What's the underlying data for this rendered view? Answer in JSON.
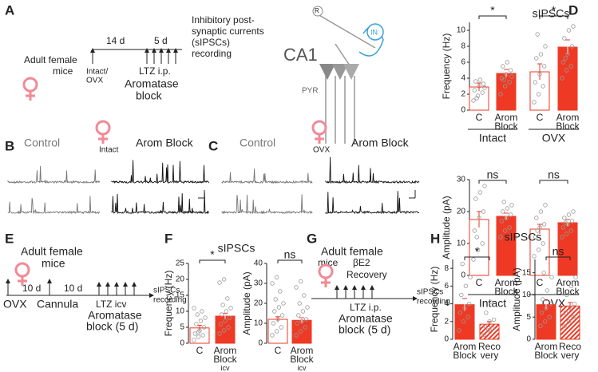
{
  "panels": {
    "A": {
      "label": "A",
      "subject": [
        "Adult female",
        "mice"
      ],
      "intervals": [
        "14 d",
        "5 d"
      ],
      "start": [
        "Intact/",
        "OVX"
      ],
      "injection": "LTZ i.p.",
      "treatment": [
        "Aromatase",
        "block"
      ],
      "recording": [
        "Inhibitory post-",
        "synaptic currents",
        "(sIPSCs)",
        "recording"
      ],
      "region": "CA1",
      "cells": [
        "R",
        "IN",
        "PYR"
      ]
    },
    "B": {
      "label": "B",
      "condition": "Intact",
      "traces": [
        "Control",
        "Arom Block"
      ]
    },
    "C": {
      "label": "C",
      "condition": "OVX",
      "traces": [
        "Control",
        "Arom Block"
      ]
    },
    "D": {
      "label": "D"
    },
    "E": {
      "label": "E",
      "subject": [
        "Adult female",
        "mice"
      ],
      "intervals": [
        "10 d",
        "10 d"
      ],
      "events": [
        "OVX",
        "Cannula",
        "LTZ icv"
      ],
      "treatment": [
        "Aromatase",
        "block (5 d)"
      ],
      "recording": [
        "sIPSCs",
        "recording"
      ]
    },
    "F": {
      "label": "F"
    },
    "G": {
      "label": "G",
      "subject": [
        "Adult female",
        "mice"
      ],
      "recovery": [
        "βE2",
        "Recovery"
      ],
      "injection": "LTZ i.p.",
      "treatment": [
        "Aromatase",
        "block (5 d)"
      ],
      "recording": [
        "sIPSCs",
        "recording"
      ]
    },
    "H": {
      "label": "H"
    }
  },
  "chart_data": [
    {
      "type": "bar",
      "title": "sIPSCs",
      "ylabel": "Frequency (Hz)",
      "categories": [
        "C",
        "Arom Block",
        "C",
        "Arom Block"
      ],
      "groups": [
        "Intact",
        "OVX"
      ],
      "styles": [
        "open",
        "filled",
        "open",
        "filled"
      ],
      "color": "#ee3a24",
      "values": [
        2.9,
        4.6,
        4.8,
        7.9
      ],
      "errors": [
        0.5,
        0.5,
        1.0,
        0.9
      ],
      "points": [
        [
          1.2,
          1.8,
          2.2,
          2.5,
          3,
          3.3,
          3.6,
          3.8,
          2.8,
          1.5
        ],
        [
          2,
          3,
          3.5,
          4,
          4.5,
          5,
          5.5,
          6,
          4.2,
          3.8
        ],
        [
          1,
          2,
          3,
          3.5,
          4.5,
          5.5,
          6.5,
          7,
          8,
          9.5
        ],
        [
          4,
          5,
          5.5,
          6,
          7,
          8,
          9,
          10,
          10.5,
          6.5
        ]
      ],
      "significance": [
        {
          "text": "*",
          "pair": [
            0,
            1
          ]
        },
        {
          "text": "*",
          "pair": [
            2,
            3
          ]
        }
      ],
      "ylim": [
        0,
        11
      ],
      "yticks": [
        0,
        2,
        4,
        6,
        8,
        10
      ]
    },
    {
      "type": "bar",
      "ylabel": "Amplitude (pA)",
      "categories": [
        "C",
        "Arom Block",
        "C",
        "Arom Block"
      ],
      "groups": [
        "Intact",
        "OVX"
      ],
      "styles": [
        "open",
        "filled",
        "open",
        "filled"
      ],
      "color": "#ee3a24",
      "values": [
        17.5,
        18.5,
        14.5,
        16.5
      ],
      "errors": [
        2.5,
        1,
        1.5,
        1
      ],
      "points": [
        [
          5,
          8,
          10,
          14,
          18,
          20,
          24,
          26,
          28,
          12
        ],
        [
          12,
          14,
          15,
          17,
          18,
          19,
          20,
          21,
          22,
          23
        ],
        [
          6,
          8,
          10,
          12,
          15,
          16,
          18,
          20,
          22,
          14
        ],
        [
          12,
          13,
          14,
          15,
          16,
          17,
          18,
          19,
          20,
          16.5
        ]
      ],
      "significance": [
        {
          "text": "ns",
          "pair": [
            0,
            1
          ]
        },
        {
          "text": "ns",
          "pair": [
            2,
            3
          ]
        }
      ],
      "ylim": [
        0,
        30
      ],
      "yticks": [
        0,
        10,
        20,
        30
      ]
    },
    {
      "type": "bar",
      "title": "sIPSCs",
      "ylabel": "Frequency (Hz)",
      "categories": [
        "C",
        "Arom Block icv"
      ],
      "styles": [
        "open",
        "filled"
      ],
      "color": "#ee3a24",
      "values": [
        4.8,
        8.5
      ],
      "errors": [
        0.8,
        0.8
      ],
      "points": [
        [
          1,
          2,
          2.5,
          3,
          4,
          5,
          6,
          7,
          8,
          9,
          10,
          11,
          3.5
        ],
        [
          3,
          4,
          5,
          6,
          7,
          8,
          9,
          10,
          11,
          12,
          14,
          19,
          20
        ]
      ],
      "significance": [
        {
          "text": "*",
          "pair": [
            0,
            1
          ]
        }
      ],
      "ylim": [
        0,
        25
      ],
      "yticks": [
        0,
        5,
        10,
        15,
        20,
        25
      ]
    },
    {
      "type": "bar",
      "ylabel": "Amplitude (pA)",
      "categories": [
        "C",
        "Arom Block icv"
      ],
      "styles": [
        "open",
        "filled"
      ],
      "color": "#ee3a24",
      "values": [
        12,
        11.5
      ],
      "errors": [
        1.3,
        1.3
      ],
      "points": [
        [
          4,
          6,
          8,
          10,
          12,
          14,
          16,
          18,
          20,
          22,
          26,
          30,
          33
        ],
        [
          4,
          6,
          8,
          10,
          11,
          12,
          14,
          16,
          18,
          20,
          24,
          28,
          31
        ]
      ],
      "significance": [
        {
          "text": "ns",
          "pair": [
            0,
            1
          ]
        }
      ],
      "ylim": [
        0,
        40
      ],
      "yticks": [
        0,
        10,
        20,
        30,
        40
      ]
    },
    {
      "type": "bar",
      "title": "sIPSCs",
      "ylabel": "Frequency (Hz)",
      "categories": [
        "Arom Block",
        "Reco very"
      ],
      "styles": [
        "filled",
        "hatched"
      ],
      "color": "#ee3a24",
      "values": [
        3.9,
        1.7
      ],
      "errors": [
        0.7,
        0.3
      ],
      "points": [
        [
          1,
          2,
          2.5,
          3,
          3.5,
          4,
          5,
          6,
          7,
          8.5
        ],
        [
          0.5,
          1,
          1.2,
          1.5,
          2,
          2.2,
          3,
          4.2
        ]
      ],
      "significance": [
        {
          "text": "*",
          "pair": [
            0,
            1
          ]
        }
      ],
      "ylim": [
        0,
        9
      ],
      "yticks": [
        0,
        2,
        4,
        6,
        8
      ]
    },
    {
      "type": "bar",
      "ylabel": "Amplitude (pA)",
      "categories": [
        "Arom Block",
        "Reco very"
      ],
      "styles": [
        "filled",
        "hatched"
      ],
      "color": "#ee3a24",
      "values": [
        7.8,
        7.5
      ],
      "errors": [
        1,
        0.8
      ],
      "points": [
        [
          3,
          4,
          5,
          6,
          7,
          8,
          9,
          11,
          14,
          15
        ],
        [
          3,
          4,
          5,
          6,
          7,
          8,
          10,
          12,
          14
        ]
      ],
      "significance": [
        {
          "text": "ns",
          "pair": [
            0,
            1
          ]
        }
      ],
      "ylim": [
        0,
        18
      ],
      "yticks": [
        0,
        5,
        10,
        15
      ]
    }
  ]
}
